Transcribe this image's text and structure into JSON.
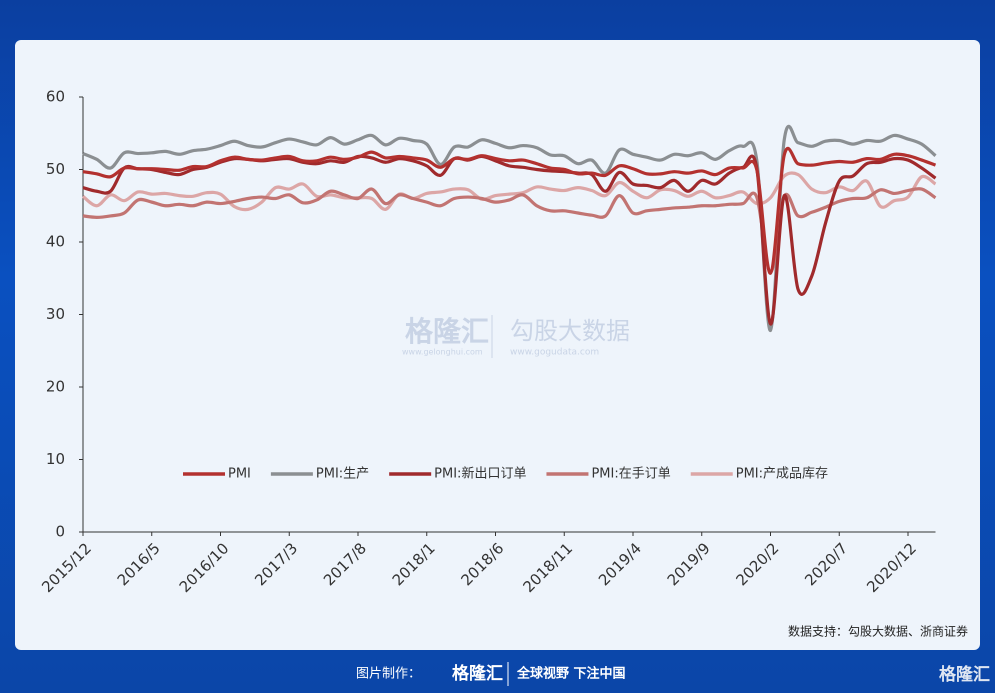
{
  "chart_data": {
    "type": "line",
    "categories": [
      "2015/12",
      null,
      null,
      null,
      null,
      "2016/5",
      null,
      null,
      null,
      null,
      "2016/10",
      null,
      null,
      null,
      null,
      "2017/3",
      null,
      null,
      null,
      null,
      "2017/8",
      null,
      null,
      null,
      null,
      "2018/1",
      null,
      null,
      null,
      null,
      "2018/6",
      null,
      null,
      null,
      null,
      "2018/11",
      null,
      null,
      null,
      null,
      "2019/4",
      null,
      null,
      null,
      null,
      "2019/9",
      null,
      null,
      null,
      null,
      "2020/2",
      null,
      null,
      null,
      null,
      "2020/7",
      null,
      null,
      null,
      null,
      "2020/12",
      null,
      null
    ],
    "ylim": [
      0,
      60
    ],
    "yticks": [
      0,
      10,
      20,
      30,
      40,
      50,
      60
    ],
    "grid": false,
    "legend": "bottom",
    "series": [
      {
        "name": "PMI",
        "color": "#b3312f",
        "values": [
          49.7,
          49.4,
          49.0,
          50.2,
          50.1,
          50.1,
          50.0,
          49.9,
          50.4,
          50.4,
          51.2,
          51.7,
          51.4,
          51.3,
          51.6,
          51.8,
          51.2,
          51.2,
          51.7,
          51.4,
          51.7,
          52.4,
          51.6,
          51.8,
          51.6,
          51.3,
          50.3,
          51.5,
          51.4,
          51.9,
          51.5,
          51.2,
          51.3,
          50.8,
          50.2,
          50.0,
          49.4,
          49.5,
          49.2,
          50.5,
          50.1,
          49.4,
          49.4,
          49.7,
          49.5,
          49.8,
          49.3,
          50.2,
          50.2,
          50.0,
          35.7,
          52.0,
          50.8,
          50.6,
          50.9,
          51.1,
          51.0,
          51.5,
          51.4,
          52.1,
          51.9,
          51.3,
          50.6
        ]
      },
      {
        "name": "PMI:生产",
        "color": "#8b8f92",
        "values": [
          52.2,
          51.4,
          50.2,
          52.3,
          52.2,
          52.3,
          52.5,
          52.1,
          52.6,
          52.8,
          53.3,
          53.9,
          53.3,
          53.1,
          53.7,
          54.2,
          53.8,
          53.4,
          54.4,
          53.5,
          54.1,
          54.7,
          53.4,
          54.3,
          54.0,
          53.5,
          50.7,
          53.1,
          53.1,
          54.1,
          53.6,
          53.0,
          53.3,
          53.0,
          52.0,
          51.9,
          50.8,
          51.3,
          49.5,
          52.7,
          52.1,
          51.7,
          51.3,
          52.1,
          51.9,
          52.3,
          51.4,
          52.6,
          53.2,
          51.3,
          27.8,
          54.1,
          53.7,
          53.2,
          53.9,
          54.0,
          53.5,
          54.0,
          53.9,
          54.7,
          54.2,
          53.5,
          51.9
        ]
      },
      {
        "name": "PMI:新出口订单",
        "color": "#a02a2c",
        "values": [
          47.5,
          47.0,
          47.0,
          50.2,
          50.1,
          50.0,
          49.6,
          49.3,
          50.0,
          50.3,
          51.0,
          51.5,
          51.4,
          51.2,
          51.4,
          51.5,
          51.0,
          50.8,
          51.2,
          51.0,
          51.8,
          51.6,
          51.0,
          51.5,
          51.2,
          50.5,
          49.2,
          51.5,
          51.3,
          51.8,
          51.2,
          50.5,
          50.3,
          50.0,
          49.8,
          49.7,
          49.5,
          49.3,
          47.0,
          49.6,
          48.0,
          47.8,
          47.5,
          48.5,
          47.0,
          48.5,
          48.0,
          49.5,
          50.3,
          50.2,
          28.7,
          46.4,
          33.5,
          35.3,
          42.6,
          48.4,
          49.1,
          50.8,
          51.0,
          51.5,
          51.3,
          50.2,
          48.8
        ]
      },
      {
        "name": "PMI:在手订单",
        "color": "#c27472",
        "values": [
          43.6,
          43.4,
          43.6,
          44.0,
          45.8,
          45.5,
          45.0,
          45.2,
          45.0,
          45.5,
          45.3,
          45.6,
          46.0,
          46.2,
          46.0,
          46.5,
          45.4,
          45.8,
          47.0,
          46.5,
          46.0,
          47.3,
          45.3,
          46.5,
          46.0,
          45.5,
          45.0,
          46.0,
          46.2,
          46.0,
          45.5,
          45.8,
          46.5,
          45.0,
          44.3,
          44.3,
          44.0,
          43.7,
          43.6,
          46.4,
          44.0,
          44.3,
          44.5,
          44.7,
          44.8,
          45.0,
          45.0,
          45.2,
          45.3,
          46.2,
          35.8,
          46.3,
          43.6,
          44.1,
          44.8,
          45.6,
          46.0,
          46.1,
          47.2,
          46.7,
          47.1,
          47.3,
          46.1
        ]
      },
      {
        "name": "PMI:产成品库存",
        "color": "#dca6a6",
        "values": [
          46.3,
          45.0,
          46.5,
          45.7,
          46.9,
          46.6,
          46.7,
          46.4,
          46.3,
          46.8,
          46.6,
          44.9,
          44.5,
          45.5,
          47.5,
          47.3,
          48.0,
          46.3,
          46.5,
          46.1,
          46.1,
          46.0,
          44.5,
          46.6,
          46.0,
          46.7,
          46.9,
          47.3,
          47.2,
          45.9,
          46.4,
          46.6,
          46.8,
          47.6,
          47.3,
          47.1,
          47.5,
          47.1,
          46.4,
          48.2,
          47.0,
          46.1,
          47.2,
          47.1,
          46.3,
          47.0,
          46.1,
          46.4,
          46.9,
          45.3,
          46.1,
          49.1,
          49.3,
          47.3,
          46.8,
          47.6,
          47.1,
          48.4,
          44.9,
          45.7,
          46.2,
          49.0,
          48.0
        ]
      }
    ]
  },
  "watermark": {
    "left": "格隆汇",
    "left_url": "www.gelonghui.com",
    "right": "勾股大数据",
    "right_url": "www.gogudata.com"
  },
  "source": "数据支持：勾股大数据、浙商证券",
  "footer": {
    "label": "图片制作：",
    "brand": "格隆汇",
    "slogan": "全球视野 下注中国",
    "corner": "格隆汇"
  }
}
